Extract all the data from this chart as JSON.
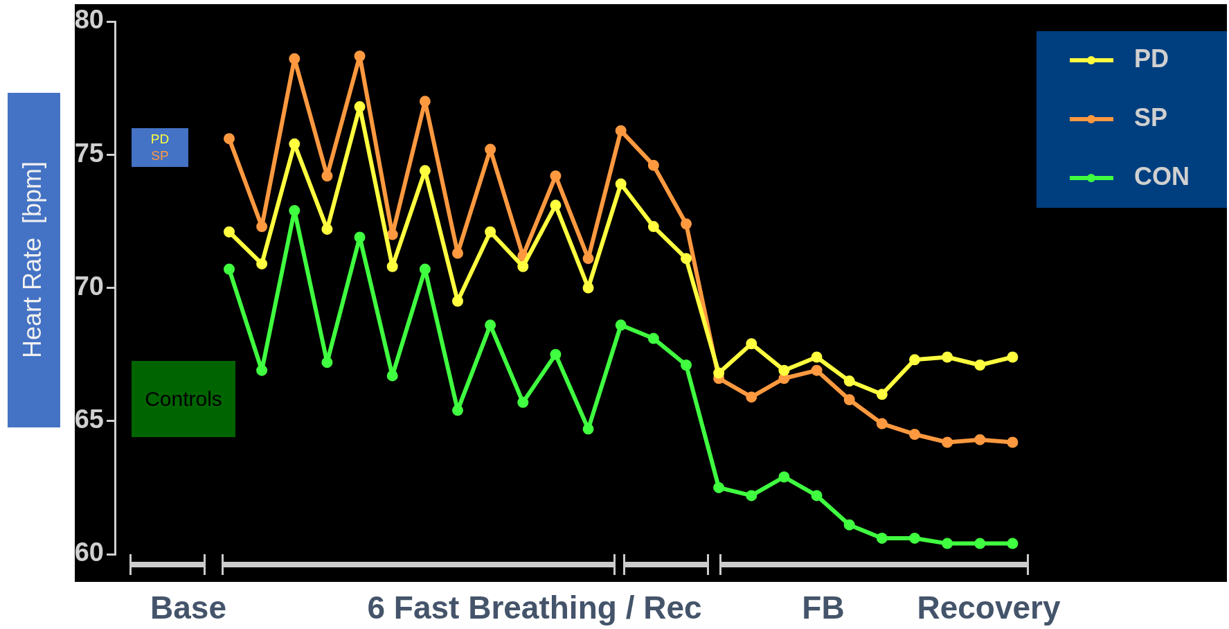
{
  "chart_data": {
    "type": "line",
    "ylabel": "Heart Rate  [bpm]",
    "categories": [
      null,
      null,
      null,
      null,
      null,
      null,
      null,
      null,
      null,
      null,
      null,
      null,
      null,
      null,
      null,
      null,
      null,
      null,
      null,
      null,
      null,
      null,
      null,
      null,
      null,
      null,
      null,
      null
    ],
    "series": [
      {
        "name": "PD",
        "color": "#ffff40",
        "values": [
          null,
          null,
          null,
          72.1,
          70.9,
          75.4,
          72.2,
          76.8,
          70.8,
          74.4,
          69.5,
          72.1,
          70.8,
          73.1,
          70.0,
          73.9,
          72.3,
          71.1,
          66.8,
          67.9,
          66.9,
          67.4,
          66.5,
          66.0,
          67.3,
          67.4,
          67.1,
          67.4
        ]
      },
      {
        "name": "SP",
        "color": "#ff9940",
        "values": [
          null,
          null,
          null,
          75.6,
          72.3,
          78.6,
          74.2,
          78.7,
          72.0,
          77.0,
          71.3,
          75.2,
          71.2,
          74.2,
          71.1,
          75.9,
          74.6,
          72.4,
          66.6,
          65.9,
          66.6,
          66.9,
          65.8,
          64.9,
          64.5,
          64.2,
          64.3,
          64.2
        ]
      },
      {
        "name": "CON",
        "color": "#40ff40",
        "values": [
          null,
          null,
          null,
          70.7,
          66.9,
          72.9,
          67.2,
          71.9,
          66.7,
          70.7,
          65.4,
          68.6,
          65.7,
          67.5,
          64.7,
          68.6,
          68.1,
          67.1,
          62.5,
          62.2,
          62.9,
          62.2,
          61.1,
          60.6,
          60.6,
          60.4,
          60.4,
          60.4
        ]
      }
    ],
    "ylim": [
      60,
      80
    ],
    "yticks": [
      60,
      65,
      70,
      75,
      80
    ],
    "grid": false,
    "legend": "top right",
    "marker": "circle",
    "line_style": "solid",
    "annotations": [
      "PD",
      "SP",
      "Controls",
      "Base",
      "6 Fast Breathing / Rec",
      "FB",
      "Recovery"
    ]
  }
}
